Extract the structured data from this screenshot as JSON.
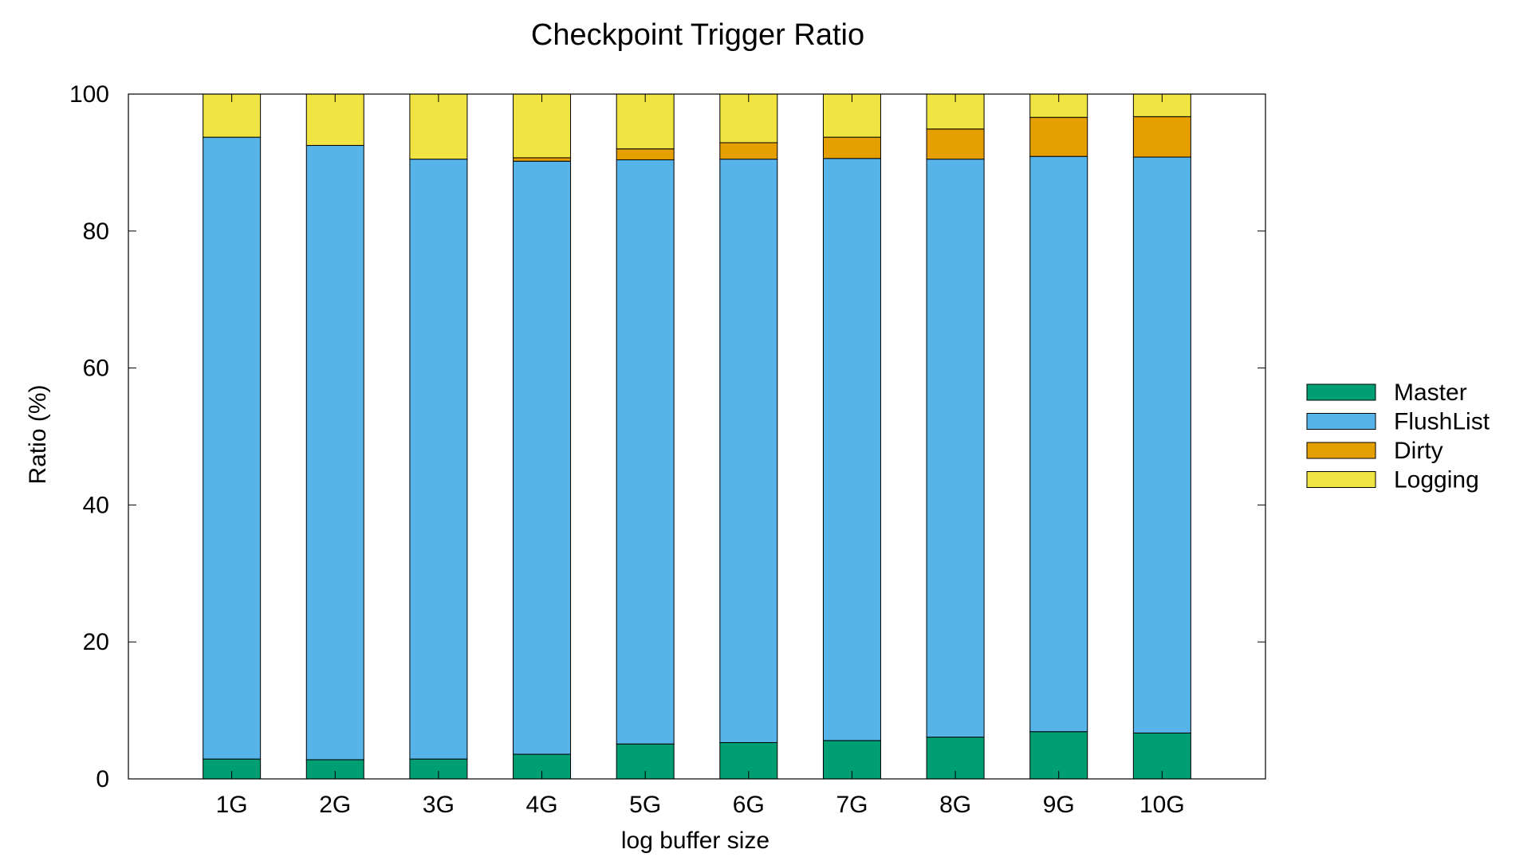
{
  "chart_data": {
    "type": "bar",
    "stacked": true,
    "title": "Checkpoint Trigger Ratio",
    "xlabel": "log buffer size",
    "ylabel": "Ratio (%)",
    "ylim": [
      0,
      100
    ],
    "yticks": [
      0,
      20,
      40,
      60,
      80,
      100
    ],
    "grid": false,
    "legend_position": "right",
    "categories": [
      "1G",
      "2G",
      "3G",
      "4G",
      "5G",
      "6G",
      "7G",
      "8G",
      "9G",
      "10G"
    ],
    "series": [
      {
        "name": "Master",
        "color": "#009E73",
        "values": [
          2.9,
          2.8,
          2.9,
          3.6,
          5.1,
          5.3,
          5.6,
          6.1,
          6.9,
          6.7
        ]
      },
      {
        "name": "FlushList",
        "color": "#56B4E9",
        "values": [
          90.8,
          89.7,
          87.6,
          86.6,
          85.3,
          85.2,
          85.0,
          84.4,
          84.0,
          84.1
        ]
      },
      {
        "name": "Dirty",
        "color": "#E69F00",
        "values": [
          0,
          0,
          0,
          0.5,
          1.6,
          2.4,
          3.1,
          4.4,
          5.7,
          5.9
        ]
      },
      {
        "name": "Logging",
        "color": "#F0E442",
        "values": [
          6.3,
          7.5,
          9.5,
          9.3,
          8.0,
          7.1,
          6.3,
          5.1,
          3.4,
          3.3
        ]
      }
    ]
  }
}
